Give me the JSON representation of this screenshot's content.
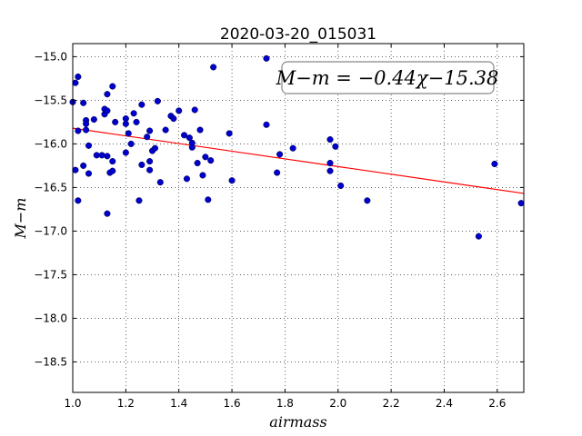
{
  "chart_data": {
    "type": "scatter",
    "title": "2020-03-20_015031",
    "xlabel": "airmass",
    "ylabel": "M−m",
    "xlim": [
      1.0,
      2.7
    ],
    "ylim": [
      -18.85,
      -14.85
    ],
    "xticks": [
      1.0,
      1.2,
      1.4,
      1.6,
      1.8,
      2.0,
      2.2,
      2.4,
      2.6
    ],
    "xtick_labels": [
      "1.0",
      "1.2",
      "1.4",
      "1.6",
      "1.8",
      "2.0",
      "2.2",
      "2.4",
      "2.6"
    ],
    "yticks": [
      -15.0,
      -15.5,
      -16.0,
      -16.5,
      -17.0,
      -17.5,
      -18.0,
      -18.5
    ],
    "ytick_labels": [
      "−15.0",
      "−15.5",
      "−16.0",
      "−16.5",
      "−17.0",
      "−17.5",
      "−18.0",
      "−18.5"
    ],
    "grid": true,
    "annotation": "M−m = −0.44χ−15.38",
    "fit_line": {
      "slope": -0.44,
      "intercept": -15.38,
      "color": "#ff0000"
    },
    "marker_color": "#0000cc",
    "points": [
      {
        "x": 1.0,
        "y": -15.52
      },
      {
        "x": 1.01,
        "y": -15.3
      },
      {
        "x": 1.02,
        "y": -15.23
      },
      {
        "x": 1.02,
        "y": -15.85
      },
      {
        "x": 1.01,
        "y": -16.3
      },
      {
        "x": 1.02,
        "y": -16.65
      },
      {
        "x": 1.04,
        "y": -15.53
      },
      {
        "x": 1.04,
        "y": -16.25
      },
      {
        "x": 1.05,
        "y": -15.73
      },
      {
        "x": 1.05,
        "y": -15.77
      },
      {
        "x": 1.05,
        "y": -15.84
      },
      {
        "x": 1.06,
        "y": -16.02
      },
      {
        "x": 1.06,
        "y": -16.34
      },
      {
        "x": 1.08,
        "y": -15.72
      },
      {
        "x": 1.09,
        "y": -16.13
      },
      {
        "x": 1.11,
        "y": -16.13
      },
      {
        "x": 1.12,
        "y": -15.66
      },
      {
        "x": 1.12,
        "y": -15.6
      },
      {
        "x": 1.13,
        "y": -15.43
      },
      {
        "x": 1.13,
        "y": -15.62
      },
      {
        "x": 1.13,
        "y": -16.14
      },
      {
        "x": 1.13,
        "y": -16.8
      },
      {
        "x": 1.14,
        "y": -16.33
      },
      {
        "x": 1.15,
        "y": -16.31
      },
      {
        "x": 1.15,
        "y": -16.2
      },
      {
        "x": 1.15,
        "y": -15.34
      },
      {
        "x": 1.16,
        "y": -15.75
      },
      {
        "x": 1.2,
        "y": -15.77
      },
      {
        "x": 1.2,
        "y": -15.71
      },
      {
        "x": 1.2,
        "y": -16.1
      },
      {
        "x": 1.21,
        "y": -15.88
      },
      {
        "x": 1.22,
        "y": -16.0
      },
      {
        "x": 1.23,
        "y": -15.65
      },
      {
        "x": 1.24,
        "y": -15.75
      },
      {
        "x": 1.25,
        "y": -16.65
      },
      {
        "x": 1.26,
        "y": -15.55
      },
      {
        "x": 1.26,
        "y": -16.24
      },
      {
        "x": 1.28,
        "y": -15.92
      },
      {
        "x": 1.29,
        "y": -15.85
      },
      {
        "x": 1.29,
        "y": -16.2
      },
      {
        "x": 1.29,
        "y": -16.3
      },
      {
        "x": 1.3,
        "y": -16.08
      },
      {
        "x": 1.31,
        "y": -16.05
      },
      {
        "x": 1.32,
        "y": -15.51
      },
      {
        "x": 1.33,
        "y": -16.44
      },
      {
        "x": 1.35,
        "y": -15.84
      },
      {
        "x": 1.37,
        "y": -15.68
      },
      {
        "x": 1.38,
        "y": -15.71
      },
      {
        "x": 1.4,
        "y": -15.62
      },
      {
        "x": 1.42,
        "y": -15.9
      },
      {
        "x": 1.43,
        "y": -16.4
      },
      {
        "x": 1.44,
        "y": -15.93
      },
      {
        "x": 1.45,
        "y": -15.99
      },
      {
        "x": 1.45,
        "y": -16.04
      },
      {
        "x": 1.46,
        "y": -15.61
      },
      {
        "x": 1.47,
        "y": -16.22
      },
      {
        "x": 1.48,
        "y": -15.84
      },
      {
        "x": 1.49,
        "y": -16.36
      },
      {
        "x": 1.5,
        "y": -16.15
      },
      {
        "x": 1.51,
        "y": -16.64
      },
      {
        "x": 1.52,
        "y": -16.19
      },
      {
        "x": 1.53,
        "y": -15.12
      },
      {
        "x": 1.59,
        "y": -15.88
      },
      {
        "x": 1.6,
        "y": -16.42
      },
      {
        "x": 1.73,
        "y": -15.02
      },
      {
        "x": 1.73,
        "y": -15.78
      },
      {
        "x": 1.77,
        "y": -16.33
      },
      {
        "x": 1.78,
        "y": -16.12
      },
      {
        "x": 1.83,
        "y": -16.05
      },
      {
        "x": 1.97,
        "y": -15.95
      },
      {
        "x": 1.97,
        "y": -16.22
      },
      {
        "x": 1.97,
        "y": -16.31
      },
      {
        "x": 1.99,
        "y": -16.03
      },
      {
        "x": 2.01,
        "y": -16.48
      },
      {
        "x": 2.11,
        "y": -16.65
      },
      {
        "x": 2.53,
        "y": -17.06
      },
      {
        "x": 2.59,
        "y": -16.23
      },
      {
        "x": 2.69,
        "y": -16.68
      }
    ]
  }
}
